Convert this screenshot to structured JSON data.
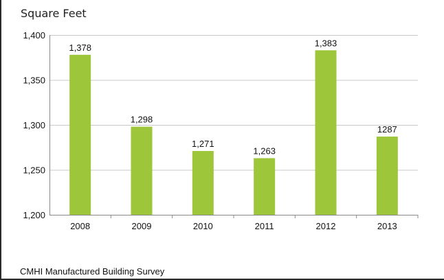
{
  "page": {
    "title": "Square Feet",
    "source": "CMHI Manufactured Building Survey"
  },
  "chart_data": {
    "type": "bar",
    "title": "Square Feet",
    "xlabel": "",
    "ylabel": "",
    "categories": [
      "2008",
      "2009",
      "2010",
      "2011",
      "2012",
      "2013"
    ],
    "values": [
      1378,
      1298,
      1271,
      1263,
      1383,
      1287
    ],
    "data_labels": [
      "1,378",
      "1,298",
      "1,271",
      "1,263",
      "1,383",
      "1287"
    ],
    "ylim": [
      1200,
      1400
    ],
    "yticks": [
      1200,
      1250,
      1300,
      1350,
      1400
    ],
    "ytick_labels": [
      "1,200",
      "1,250",
      "1,300",
      "1,350",
      "1,400"
    ],
    "grid": true,
    "legend": "none",
    "bar_color": "#9dc63b"
  }
}
